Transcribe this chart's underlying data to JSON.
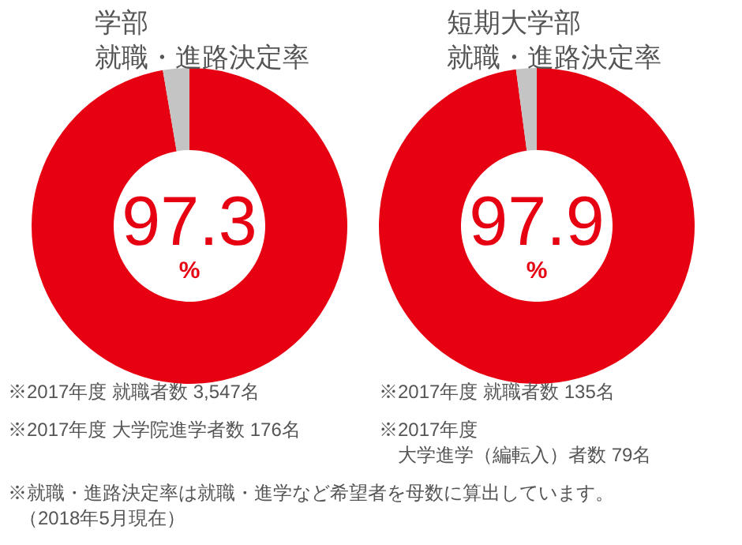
{
  "chart_data": [
    {
      "type": "donut",
      "title": "学部",
      "subtitle": "就職・進路決定率",
      "categories": [
        null,
        null
      ],
      "values": [
        97.3,
        2.7
      ],
      "colors": [
        "#e60012",
        "#c4c4c4"
      ],
      "value_labels": [
        "97.3\n%",
        null
      ],
      "annotations": [
        "※2017年度 就職者数 3,547名",
        "※2017年度 大学院進学者数 176名"
      ]
    },
    {
      "type": "donut",
      "title": "短期大学部",
      "subtitle": "就職・進路決定率",
      "categories": [
        null,
        null
      ],
      "values": [
        97.9,
        2.1
      ],
      "colors": [
        "#e60012",
        "#c4c4c4"
      ],
      "value_labels": [
        "97.9\n%",
        null
      ],
      "annotations": [
        "※2017年度 就職者数 135名",
        "※2017年度",
        "大学進学（編転入）者数 79名",
        "※就職・進路決定率は就職・進学など希望者を母数に算出しています。",
        "（2018年5月現在）"
      ]
    }
  ]
}
